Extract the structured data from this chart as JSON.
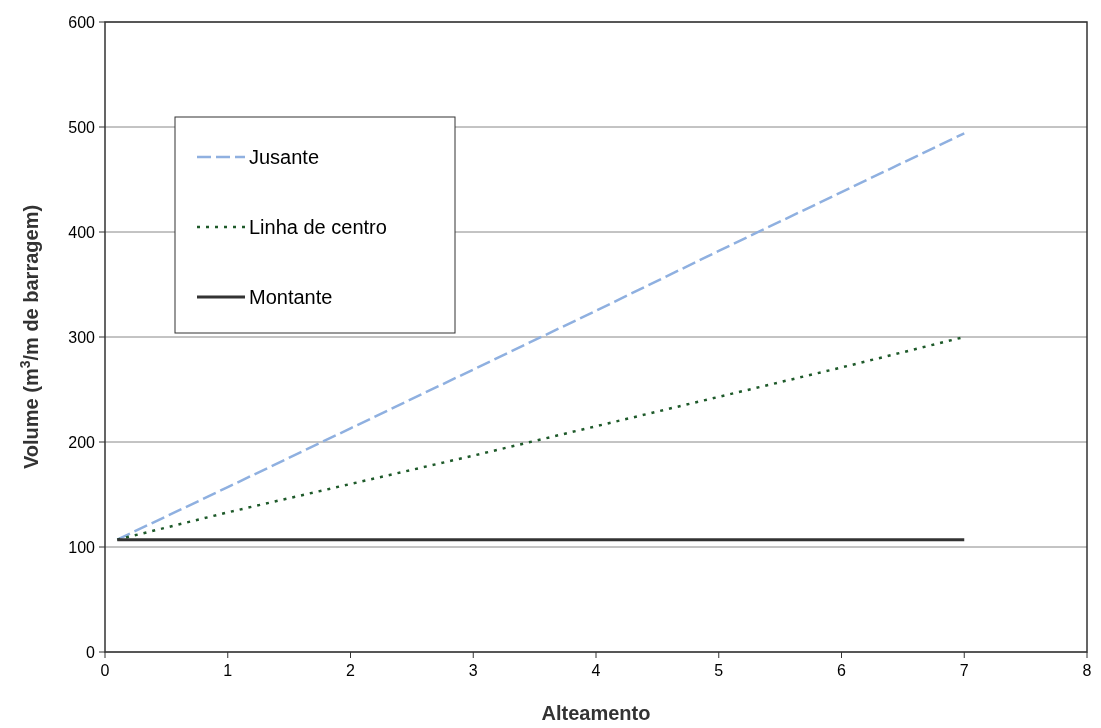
{
  "chart_data": {
    "type": "line",
    "xlabel": "Alteamento",
    "ylabel": "Volume (m$^{3}$/m de barragem)",
    "xlim": [
      0,
      8
    ],
    "xticks": [
      0,
      1,
      2,
      3,
      4,
      5,
      6,
      7,
      8
    ],
    "ylim": [
      0,
      600
    ],
    "yticks": [
      0,
      100,
      200,
      300,
      400,
      500,
      600
    ],
    "grid": "y",
    "legend": "top left",
    "marker": "none",
    "series": [
      {
        "name": "Jusante",
        "color": "#8fb0e0",
        "line_style": "dashed",
        "x": [
          0.1,
          1,
          2,
          3,
          4,
          5,
          6,
          7
        ],
        "values": [
          107,
          157,
          213,
          269,
          325,
          382,
          438,
          494
        ]
      },
      {
        "name": "Linha de centro",
        "color": "#1e5a2a",
        "line_style": "dotted",
        "x": [
          0.1,
          1,
          2,
          3,
          4,
          5,
          6,
          7
        ],
        "values": [
          107,
          133,
          160,
          187,
          215,
          243,
          271,
          300
        ]
      },
      {
        "name": "Montante",
        "color": "#333333",
        "line_style": "solid",
        "x": [
          0.1,
          7
        ],
        "values": [
          107,
          107
        ]
      }
    ]
  }
}
